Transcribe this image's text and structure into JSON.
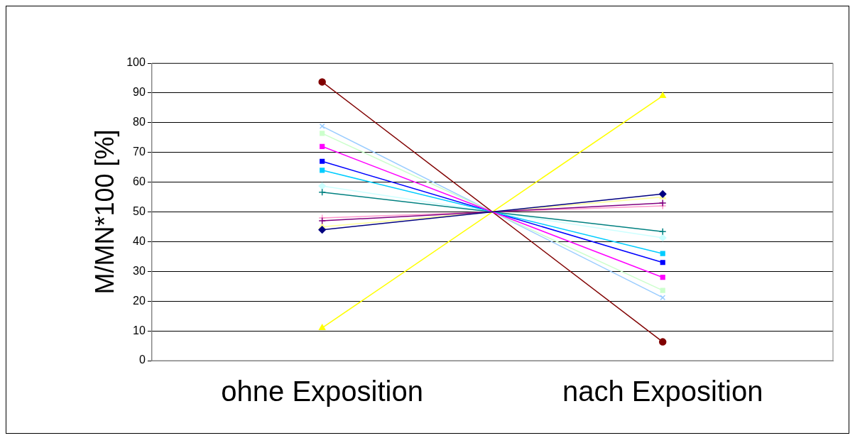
{
  "chart_data": {
    "type": "line",
    "ylabel": "M/MN*100 [%]",
    "categories": [
      "ohne Exposition",
      "nach Exposition"
    ],
    "ylim": [
      0,
      100
    ],
    "yticks": [
      0,
      10,
      20,
      30,
      40,
      50,
      60,
      70,
      80,
      90,
      100
    ],
    "grid": "y",
    "legend": false,
    "line_style": "solid",
    "series": [
      {
        "color": "#000080",
        "marker": "diamond",
        "values": [
          44,
          56
        ]
      },
      {
        "color": "#ff00ff",
        "marker": "square",
        "values": [
          72,
          28
        ]
      },
      {
        "color": "#ffff00",
        "marker": "triangle",
        "values": [
          11,
          89
        ]
      },
      {
        "color": "#00ccff",
        "marker": "square",
        "values": [
          64,
          36
        ]
      },
      {
        "color": "#800080",
        "marker": "cross",
        "values": [
          47,
          53
        ]
      },
      {
        "color": "#800000",
        "marker": "circle",
        "values": [
          93.7,
          6.3
        ]
      },
      {
        "color": "#008080",
        "marker": "cross",
        "values": [
          56.6,
          43.4
        ]
      },
      {
        "color": "#0000ff",
        "marker": "square",
        "values": [
          67,
          33
        ]
      },
      {
        "color": "#ccffff",
        "marker": "diamond",
        "values": [
          58.7,
          41.3
        ]
      },
      {
        "color": "#ccffcc",
        "marker": "square",
        "values": [
          76.4,
          23.6
        ]
      },
      {
        "color": "#ffff99",
        "marker": "triangle",
        "values": [
          45,
          55
        ]
      },
      {
        "color": "#99ccff",
        "marker": "x",
        "values": [
          78.8,
          21.2
        ]
      },
      {
        "color": "#ff99cc",
        "marker": "cross",
        "values": [
          48,
          52
        ]
      }
    ]
  }
}
